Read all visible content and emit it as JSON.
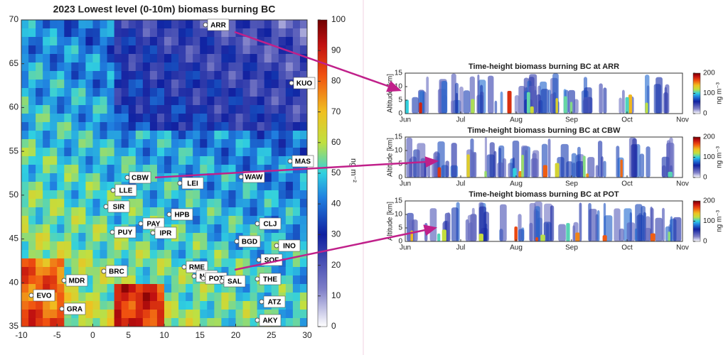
{
  "map": {
    "title": "2023 Lowest level (0-10m) biomass burning BC",
    "xlim": [
      -10,
      30
    ],
    "xticks": [
      -10,
      -5,
      0,
      5,
      10,
      15,
      20,
      25,
      30
    ],
    "ylim": [
      35,
      70
    ],
    "yticks": [
      35,
      40,
      45,
      50,
      55,
      60,
      65,
      70
    ],
    "colorbar": {
      "label": "ng m⁻²",
      "clim": [
        0,
        100
      ],
      "ticks": [
        0,
        10,
        20,
        30,
        40,
        50,
        60,
        70,
        80,
        90,
        100
      ]
    },
    "stations": [
      "ARR",
      "KUO",
      "MAS",
      "WAW",
      "CBW",
      "LLE",
      "LEI",
      "SIR",
      "HPB",
      "PAY",
      "IPR",
      "PUY",
      "CLJ",
      "BGD",
      "INO",
      "SOF",
      "RME",
      "NAP",
      "POT",
      "SAL",
      "THE",
      "BRC",
      "MDR",
      "EVO",
      "GRA",
      "ATZ",
      "AKY"
    ]
  },
  "panels": [
    {
      "title": "Time-height biomass burning BC at ARR",
      "ylabel": "Altitude [km]",
      "ylim": [
        0,
        15
      ],
      "yticks": [
        0,
        5,
        10,
        15
      ],
      "months": [
        "Jun",
        "Jul",
        "Aug",
        "Sep",
        "Oct",
        "Nov"
      ],
      "colorbar": {
        "label": "ng m⁻³",
        "clim": [
          0,
          200
        ],
        "ticks": [
          0,
          100,
          200
        ]
      }
    },
    {
      "title": "Time-height biomass burning BC at CBW",
      "ylabel": "Altitude [km]",
      "ylim": [
        0,
        15
      ],
      "yticks": [
        0,
        5,
        10,
        15
      ],
      "months": [
        "Jun",
        "Jul",
        "Aug",
        "Sep",
        "Oct",
        "Nov"
      ],
      "colorbar": {
        "label": "ng m⁻³",
        "clim": [
          0,
          200
        ],
        "ticks": [
          0,
          100,
          200
        ]
      }
    },
    {
      "title": "Time-height biomass burning BC at POT",
      "ylabel": "Altitude [km]",
      "ylim": [
        0,
        15
      ],
      "yticks": [
        0,
        5,
        10,
        15
      ],
      "months": [
        "Jun",
        "Jul",
        "Aug",
        "Sep",
        "Oct",
        "Nov"
      ],
      "colorbar": {
        "label": "ng m⁻³",
        "clim": [
          0,
          200
        ],
        "ticks": [
          0,
          100,
          200
        ]
      }
    }
  ]
}
